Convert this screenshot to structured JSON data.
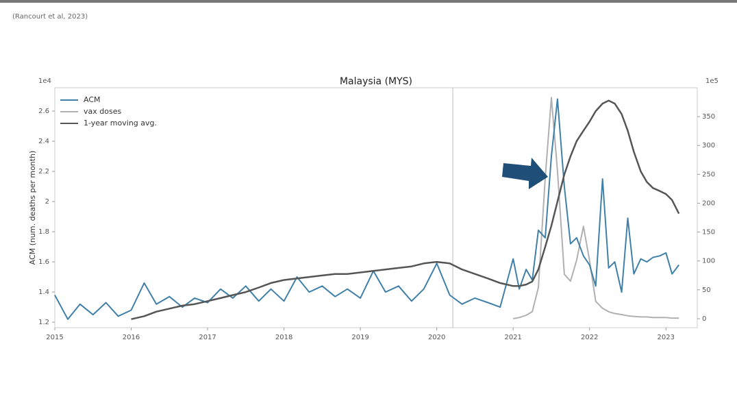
{
  "citation": "(Rancourt et al, 2023)",
  "chart_data": {
    "type": "line",
    "title": "Malaysia (MYS)",
    "ylabel": "ACM (num. deaths per month)",
    "y_offset_label": "1e4",
    "y2_offset_label": "1e5",
    "x": [
      2015.0,
      2015.17,
      2015.33,
      2015.5,
      2015.67,
      2015.83,
      2016.0,
      2016.17,
      2016.33,
      2016.5,
      2016.67,
      2016.83,
      2017.0,
      2017.17,
      2017.33,
      2017.5,
      2017.67,
      2017.83,
      2018.0,
      2018.17,
      2018.33,
      2018.5,
      2018.67,
      2018.83,
      2019.0,
      2019.17,
      2019.33,
      2019.5,
      2019.67,
      2019.83,
      2020.0,
      2020.17,
      2020.33,
      2020.5,
      2020.67,
      2020.83,
      2021.0,
      2021.08,
      2021.17,
      2021.25,
      2021.33,
      2021.42,
      2021.5,
      2021.58,
      2021.67,
      2021.75,
      2021.83,
      2021.92,
      2022.0,
      2022.08,
      2022.17,
      2022.25,
      2022.33,
      2022.42,
      2022.5,
      2022.58,
      2022.67,
      2022.75,
      2022.83,
      2022.92,
      2023.0,
      2023.08,
      2023.17
    ],
    "series": [
      {
        "name": "ACM",
        "color": "#3f7fa8",
        "axis": "y",
        "values": [
          1.38,
          1.22,
          1.32,
          1.25,
          1.33,
          1.24,
          1.28,
          1.46,
          1.32,
          1.37,
          1.3,
          1.36,
          1.33,
          1.42,
          1.36,
          1.44,
          1.34,
          1.42,
          1.34,
          1.5,
          1.4,
          1.44,
          1.37,
          1.42,
          1.36,
          1.54,
          1.4,
          1.44,
          1.34,
          1.42,
          1.59,
          1.38,
          1.32,
          1.36,
          1.33,
          1.3,
          1.62,
          1.42,
          1.55,
          1.48,
          1.81,
          1.76,
          2.3,
          2.68,
          2.1,
          1.72,
          1.76,
          1.64,
          1.58,
          1.44,
          2.15,
          1.56,
          1.6,
          1.4,
          1.89,
          1.52,
          1.62,
          1.6,
          1.63,
          1.64,
          1.66,
          1.52,
          1.58
        ]
      },
      {
        "name": "vax doses",
        "color": "#b0b0b0",
        "axis": "y2",
        "values": [
          null,
          null,
          null,
          null,
          null,
          null,
          null,
          null,
          null,
          null,
          null,
          null,
          null,
          null,
          null,
          null,
          null,
          null,
          null,
          null,
          null,
          null,
          null,
          null,
          null,
          null,
          null,
          null,
          null,
          null,
          null,
          null,
          null,
          null,
          null,
          null,
          0,
          2,
          6,
          12,
          54,
          244,
          383,
          256,
          77,
          65,
          101,
          160,
          101,
          30,
          18,
          12,
          9,
          7,
          5,
          4,
          3,
          3,
          2,
          2,
          2,
          1,
          1
        ]
      },
      {
        "name": "1-year moving avg.",
        "color": "#555555",
        "axis": "y",
        "values": [
          null,
          null,
          null,
          null,
          null,
          null,
          1.22,
          1.24,
          1.27,
          1.29,
          1.31,
          1.32,
          1.34,
          1.36,
          1.38,
          1.4,
          1.43,
          1.46,
          1.48,
          1.49,
          1.5,
          1.51,
          1.52,
          1.52,
          1.53,
          1.54,
          1.55,
          1.56,
          1.57,
          1.59,
          1.6,
          1.59,
          1.55,
          1.52,
          1.49,
          1.46,
          1.44,
          1.44,
          1.45,
          1.47,
          1.55,
          1.7,
          1.84,
          2.0,
          2.18,
          2.3,
          2.4,
          2.47,
          2.53,
          2.6,
          2.65,
          2.67,
          2.65,
          2.58,
          2.47,
          2.33,
          2.2,
          2.13,
          2.09,
          2.07,
          2.05,
          2.01,
          1.92
        ]
      }
    ],
    "xlim": [
      2015.0,
      2023.41
    ],
    "xticks": [
      2015,
      2016,
      2017,
      2018,
      2019,
      2020,
      2021,
      2022,
      2023
    ],
    "ylim": [
      1.164,
      2.755
    ],
    "yticks": [
      1.2,
      1.4,
      1.6,
      1.8,
      2.0,
      2.2,
      2.4,
      2.6
    ],
    "y2lim": [
      -15.5,
      400
    ],
    "y2ticks": [
      0,
      50,
      100,
      150,
      200,
      250,
      300,
      350
    ],
    "vline_x": 2020.21,
    "legend": "upper left"
  }
}
